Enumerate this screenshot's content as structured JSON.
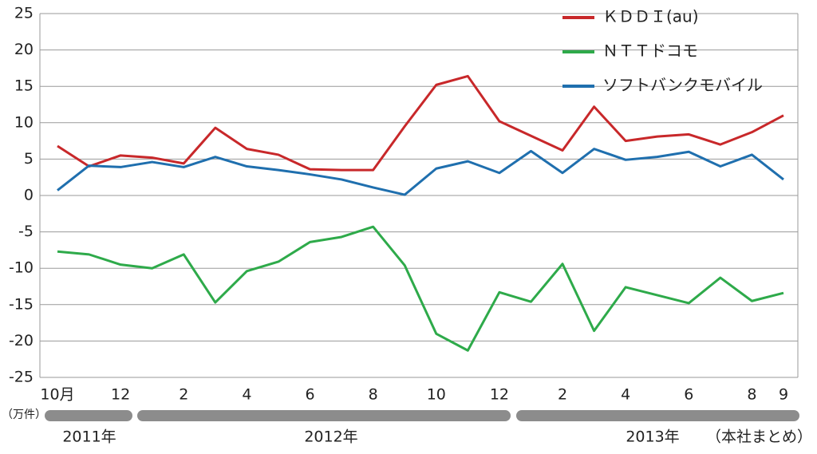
{
  "chart_data": {
    "type": "line",
    "categories": [
      "10月",
      null,
      "12",
      null,
      "2",
      null,
      "4",
      null,
      "6",
      null,
      "8",
      null,
      "10",
      null,
      "12",
      null,
      "2",
      null,
      "4",
      null,
      "6",
      null,
      "8",
      "9"
    ],
    "series": [
      {
        "name": "ＫＤＤＩ(au)",
        "color": "#c8282a",
        "values": [
          6.8,
          4.0,
          5.5,
          5.2,
          4.4,
          9.3,
          6.4,
          5.6,
          3.6,
          3.5,
          3.5,
          9.5,
          15.2,
          16.4,
          10.2,
          8.2,
          6.2,
          12.2,
          7.5,
          8.1,
          8.4,
          7.0,
          8.7,
          11.0
        ]
      },
      {
        "name": "ＮＴＴドコモ",
        "color": "#2eaa4a",
        "values": [
          -7.7,
          -8.1,
          -9.5,
          -10.0,
          -8.1,
          -14.7,
          -10.4,
          -9.1,
          -6.4,
          -5.7,
          -4.3,
          -9.6,
          -19.0,
          -21.3,
          -13.3,
          -14.6,
          -9.4,
          -18.6,
          -12.6,
          -13.7,
          -14.8,
          -11.3,
          -14.5,
          -13.4
        ]
      },
      {
        "name": "ソフトバンクモバイル",
        "color": "#1f6fae",
        "values": [
          0.7,
          4.1,
          3.9,
          4.6,
          3.9,
          5.3,
          4.0,
          3.5,
          2.9,
          2.2,
          1.1,
          0.1,
          3.7,
          4.7,
          3.1,
          6.1,
          3.1,
          6.4,
          4.9,
          5.3,
          6.0,
          4.0,
          5.6,
          2.2
        ]
      }
    ],
    "ylim": [
      -25,
      25
    ],
    "yticks": [
      25,
      20,
      15,
      10,
      5,
      0,
      -5,
      -10,
      -15,
      -20,
      -25
    ],
    "grid": true,
    "y_unit": "（万件）",
    "year_labels": [
      "2011年",
      "2012年",
      "2013年"
    ],
    "note": "（本社まとめ）",
    "legend": "top-right"
  }
}
